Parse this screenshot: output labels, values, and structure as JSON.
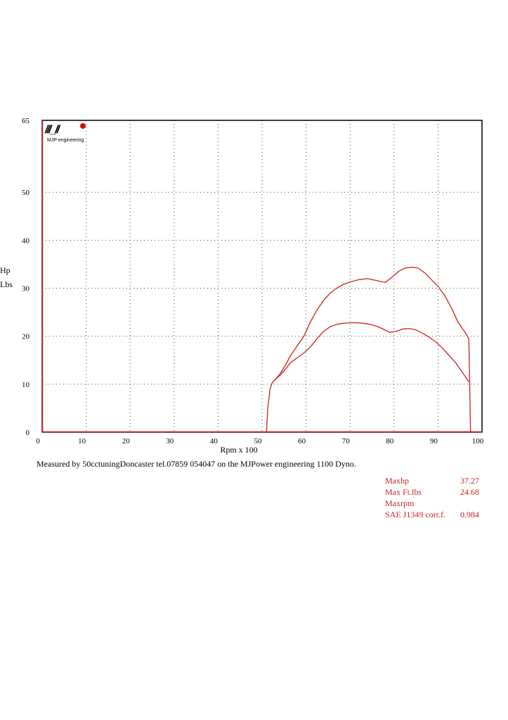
{
  "chart_data": {
    "type": "line",
    "xlabel": "Rpm x 100",
    "ylabel_lines": [
      "Hp",
      "Lbs"
    ],
    "xlim": [
      0,
      100
    ],
    "ylim": [
      0,
      65
    ],
    "x_ticks": [
      "0",
      "10",
      "20",
      "30",
      "40",
      "50",
      "60",
      "70",
      "80",
      "90",
      "100"
    ],
    "y_ticks": [
      "0",
      "10",
      "20",
      "30",
      "40",
      "50",
      "65"
    ],
    "grid": "dotted",
    "series": [
      {
        "color": "#cc2222",
        "x": [
          51.0,
          51.3,
          51.8,
          52.3,
          53.0,
          54.0,
          55.0,
          56.5,
          58.0,
          59.5,
          61.0,
          62.5,
          64.0,
          65.5,
          67.0,
          68.5,
          70.0,
          72.0,
          74.0,
          76.0,
          78.0,
          79.5,
          81.0,
          82.5,
          84.0,
          85.5,
          87.0,
          88.5,
          90.0,
          91.5,
          93.0,
          94.5,
          96.0,
          97.0,
          97.2,
          97.4
        ],
        "y": [
          0.0,
          5.0,
          9.0,
          10.3,
          11.0,
          12.0,
          13.5,
          16.0,
          18.0,
          20.0,
          23.0,
          25.5,
          27.5,
          29.0,
          30.0,
          30.8,
          31.3,
          31.8,
          32.0,
          31.6,
          31.2,
          32.3,
          33.5,
          34.2,
          34.4,
          34.2,
          33.2,
          31.8,
          30.4,
          28.5,
          26.0,
          23.0,
          21.0,
          19.5,
          10.0,
          0.0
        ]
      },
      {
        "color": "#cc2222",
        "x": [
          53.0,
          54.0,
          55.0,
          56.5,
          58.0,
          59.5,
          61.0,
          62.5,
          64.0,
          65.5,
          67.0,
          68.5,
          70.0,
          71.5,
          73.0,
          74.5,
          76.0,
          77.5,
          79.0,
          80.5,
          82.0,
          83.5,
          85.0,
          86.5,
          88.0,
          89.5,
          91.0,
          92.5,
          94.0,
          95.5,
          97.0
        ],
        "y": [
          11.0,
          11.8,
          12.8,
          14.5,
          15.5,
          16.5,
          17.8,
          19.5,
          21.0,
          22.0,
          22.5,
          22.7,
          22.8,
          22.8,
          22.7,
          22.5,
          22.1,
          21.5,
          20.8,
          21.0,
          21.5,
          21.6,
          21.3,
          20.6,
          19.8,
          18.8,
          17.5,
          16.0,
          14.5,
          12.5,
          10.5
        ]
      }
    ]
  },
  "logo": {
    "text": "MJP engineering",
    "glyphs": "///_//"
  },
  "note": "Measured by 50cctuningDoncaster tel.07859 054047 on the MJPower engineering 1100 Dyno.",
  "stats": [
    {
      "label": "Maxhp",
      "value": "37.27"
    },
    {
      "label": "Max Ft.lbs",
      "value": "24.68"
    },
    {
      "label": "Maxrpm",
      "value": ""
    },
    {
      "label": "SAE J1349 corr.f.",
      "value": "0.984"
    }
  ]
}
